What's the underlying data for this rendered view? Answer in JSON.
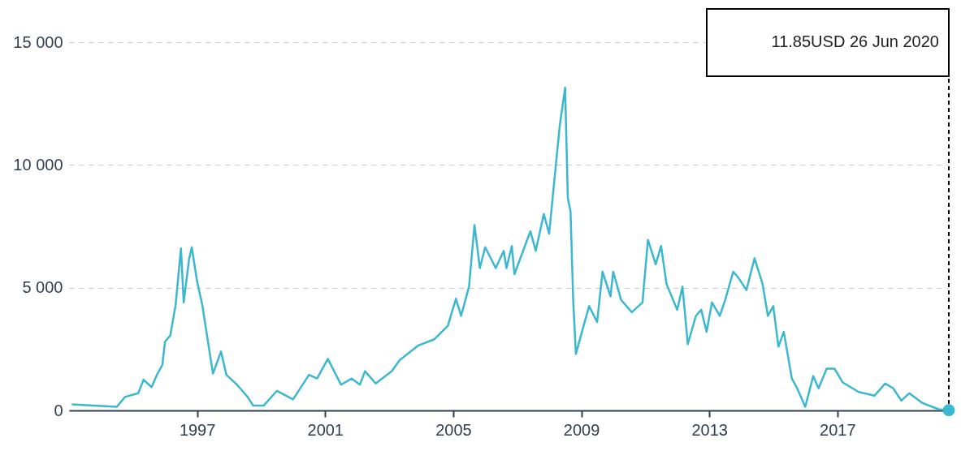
{
  "chart_data": {
    "type": "line",
    "x": [
      "1993-02",
      "1993-10",
      "1994-07",
      "1994-10",
      "1995-03",
      "1995-05",
      "1995-08",
      "1995-10",
      "1995-12",
      "1996-01",
      "1996-03",
      "1996-05",
      "1996-07",
      "1996-08",
      "1996-10",
      "1996-11",
      "1997-01",
      "1997-03",
      "1997-05",
      "1997-07",
      "1997-10",
      "1997-12",
      "1998-04",
      "1998-08",
      "1998-10",
      "1999-02",
      "1999-07",
      "2000-01",
      "2000-07",
      "2000-10",
      "2001-02",
      "2001-07",
      "2001-11",
      "2002-02",
      "2002-04",
      "2002-08",
      "2003-02",
      "2003-05",
      "2003-12",
      "2004-06",
      "2004-11",
      "2005-02",
      "2005-04",
      "2005-07",
      "2005-09",
      "2005-11",
      "2006-01",
      "2006-05",
      "2006-08",
      "2006-09",
      "2006-11",
      "2006-12",
      "2007-06",
      "2007-08",
      "2007-11",
      "2008-01",
      "2008-03",
      "2008-05",
      "2008-07",
      "2008-08",
      "2008-09",
      "2008-10",
      "2008-11",
      "2009-02",
      "2009-04",
      "2009-07",
      "2009-09",
      "2009-12",
      "2010-01",
      "2010-04",
      "2010-08",
      "2010-12",
      "2011-02",
      "2011-05",
      "2011-07",
      "2011-09",
      "2012-01",
      "2012-03",
      "2012-05",
      "2012-08",
      "2012-10",
      "2012-12",
      "2013-02",
      "2013-05",
      "2013-07",
      "2013-10",
      "2013-12",
      "2014-03",
      "2014-06",
      "2014-09",
      "2014-11",
      "2015-01",
      "2015-03",
      "2015-05",
      "2015-08",
      "2015-10",
      "2016-01",
      "2016-04",
      "2016-06",
      "2016-09",
      "2016-12",
      "2017-03",
      "2017-09",
      "2018-03",
      "2018-07",
      "2018-10",
      "2019-01",
      "2019-04",
      "2019-09",
      "2020-03",
      "2020-06-26"
    ],
    "series": [
      {
        "color": "#3bb8d0",
        "values": [
          250,
          200,
          150,
          550,
          700,
          1250,
          950,
          1450,
          1850,
          2800,
          3050,
          4300,
          6600,
          4400,
          6150,
          6650,
          5250,
          4300,
          2900,
          1500,
          2400,
          1450,
          1050,
          550,
          200,
          200,
          800,
          450,
          1450,
          1300,
          2100,
          1050,
          1300,
          1050,
          1600,
          1100,
          1600,
          2050,
          2650,
          2900,
          3450,
          4550,
          3850,
          5050,
          7550,
          5800,
          6650,
          5800,
          6500,
          5800,
          6700,
          5550,
          7300,
          6500,
          8000,
          7200,
          9400,
          11600,
          13150,
          8650,
          8100,
          4500,
          2300,
          3500,
          4250,
          3600,
          5650,
          4650,
          5650,
          4500,
          4000,
          4400,
          6950,
          5950,
          6700,
          5150,
          4100,
          5050,
          2700,
          3850,
          4100,
          3200,
          4400,
          3850,
          4500,
          5650,
          5400,
          4900,
          6200,
          5150,
          3850,
          4250,
          2600,
          3200,
          1300,
          900,
          150,
          1400,
          900,
          1700,
          1700,
          1150,
          750,
          600,
          1100,
          900,
          400,
          700,
          300,
          50,
          11.85
        ]
      }
    ],
    "xlim": [
      "1993-01-01",
      "2020-06-26"
    ],
    "xticks": [
      "1997",
      "2001",
      "2005",
      "2009",
      "2013",
      "2017"
    ],
    "ylim": [
      0,
      15000
    ],
    "yticks": [
      0,
      {
        "value": 5000,
        "label": "5 000"
      },
      {
        "value": 10000,
        "label": "10 000"
      },
      {
        "value": 15000,
        "label": "15 000"
      }
    ],
    "grid": "y",
    "line_style": "solid",
    "ref_lines": [
      {
        "axis": "x",
        "value": "2020-06-26",
        "color": "#000000",
        "line_style": "dashed",
        "label": "11.85USD 26 Jun 2020"
      }
    ]
  }
}
